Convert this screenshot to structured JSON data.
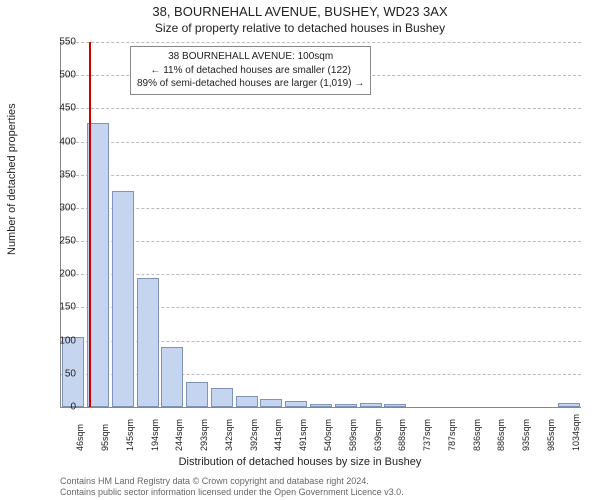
{
  "title": "38, BOURNEHALL AVENUE, BUSHEY, WD23 3AX",
  "subtitle": "Size of property relative to detached houses in Bushey",
  "ylabel": "Number of detached properties",
  "xlabel": "Distribution of detached houses by size in Bushey",
  "footer_line1": "Contains HM Land Registry data © Crown copyright and database right 2024.",
  "footer_line2": "Contains public sector information licensed under the Open Government Licence v3.0.",
  "annotation": {
    "line1": "38 BOURNEHALL AVENUE: 100sqm",
    "line2": "← 11% of detached houses are smaller (122)",
    "line3": "89% of semi-detached houses are larger (1,019) →"
  },
  "chart": {
    "type": "histogram",
    "bar_fill": "#c6d5ef",
    "bar_border": "#7f93b6",
    "marker_color": "#cc0000",
    "grid_color": "#bbbbbb",
    "axis_color": "#888888",
    "background_color": "#ffffff",
    "ylim": [
      0,
      550
    ],
    "ytick_step": 50,
    "yticks": [
      0,
      50,
      100,
      150,
      200,
      250,
      300,
      350,
      400,
      450,
      500,
      550
    ],
    "xtick_labels": [
      "46sqm",
      "95sqm",
      "145sqm",
      "194sqm",
      "244sqm",
      "293sqm",
      "342sqm",
      "392sqm",
      "441sqm",
      "491sqm",
      "540sqm",
      "589sqm",
      "639sqm",
      "688sqm",
      "737sqm",
      "787sqm",
      "836sqm",
      "886sqm",
      "935sqm",
      "985sqm",
      "1034sqm"
    ],
    "marker_x_sqm": 100,
    "x_range": [
      46,
      1034
    ],
    "categories": [
      "46",
      "95",
      "145",
      "194",
      "244",
      "293",
      "342",
      "392",
      "441",
      "491",
      "540",
      "589",
      "639",
      "688",
      "737",
      "787",
      "836",
      "886",
      "935",
      "985",
      "1034"
    ],
    "values": [
      105,
      428,
      325,
      195,
      90,
      38,
      28,
      16,
      12,
      9,
      4,
      5,
      6,
      5,
      0,
      0,
      0,
      0,
      0,
      0,
      6
    ]
  }
}
